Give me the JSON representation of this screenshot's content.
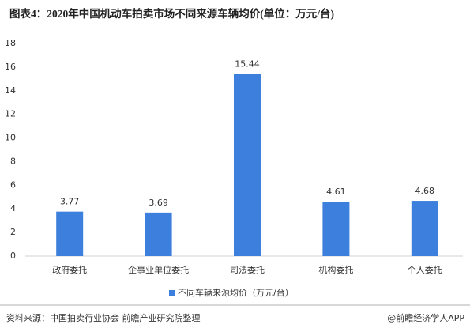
{
  "chart_data": {
    "type": "bar",
    "title": "图表4：2020年中国机动车拍卖市场不同来源车辆均价(单位：万元/台)",
    "categories": [
      "政府委托",
      "企事业单位委托",
      "司法委托",
      "机构委托",
      "个人委托"
    ],
    "series": [
      {
        "name": "不同车辆来源均价（万元/台）",
        "color": "#3d7fdc",
        "values": [
          3.77,
          3.69,
          15.44,
          4.61,
          4.68
        ]
      }
    ],
    "ylim": [
      0,
      18
    ],
    "yticks": [
      0,
      2,
      4,
      6,
      8,
      10,
      12,
      14,
      16,
      18
    ],
    "grid": false,
    "legend": "bottom",
    "source": "资料来源：中国拍卖行业协会 前瞻产业研究院整理",
    "credit": "@前瞻经济学人APP"
  }
}
